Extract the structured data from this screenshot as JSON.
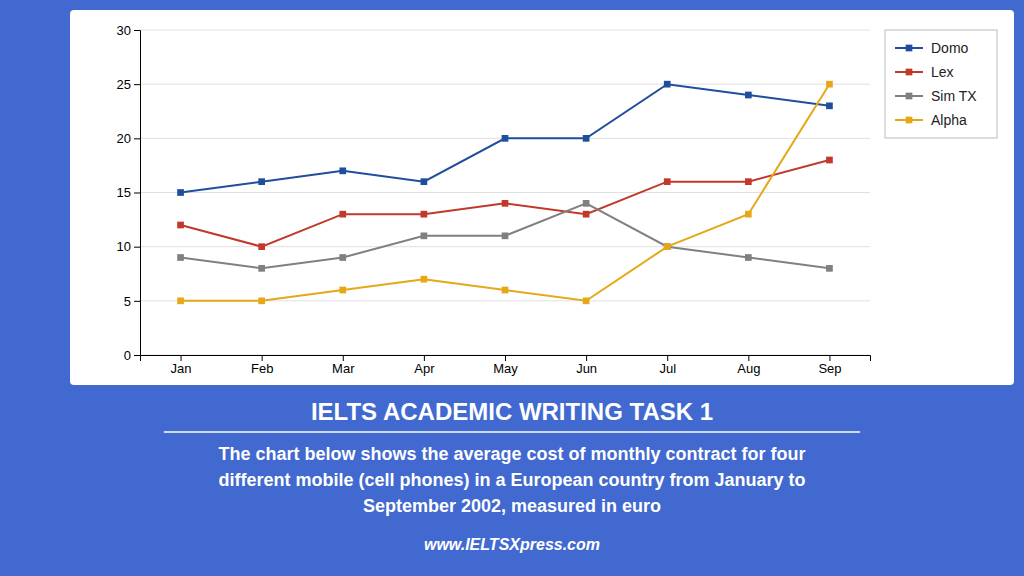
{
  "chart_data": {
    "type": "line",
    "title": "IELTS ACADEMIC WRITING TASK 1",
    "subtitle": [
      "The chart below shows the average cost of monthly contract for four",
      "different mobile (cell phones) in a European country from January to",
      "September 2002, measured in euro"
    ],
    "annotations": [
      "www.IELTSXpress.com"
    ],
    "categories": [
      "Jan",
      "Feb",
      "Mar",
      "Apr",
      "May",
      "Jun",
      "Jul",
      "Aug",
      "Sep"
    ],
    "series": [
      {
        "name": "Domo",
        "color": "#1f4e9c",
        "marker": "square",
        "values": [
          15,
          16,
          17,
          16,
          20,
          20,
          25,
          24,
          23
        ]
      },
      {
        "name": "Lex",
        "color": "#c0392b",
        "marker": "square",
        "values": [
          12,
          10,
          13,
          13,
          14,
          13,
          16,
          16,
          18
        ]
      },
      {
        "name": "Sim TX",
        "color": "#808080",
        "marker": "square",
        "values": [
          9,
          8,
          9,
          11,
          11,
          14,
          10,
          9,
          8
        ]
      },
      {
        "name": "Alpha",
        "color": "#e6a817",
        "marker": "square",
        "values": [
          5,
          5,
          6,
          7,
          6,
          5,
          10,
          13,
          25
        ]
      }
    ],
    "ylim": [
      0,
      30
    ],
    "yticks": [
      0,
      5,
      10,
      15,
      20,
      25,
      30
    ],
    "grid": true,
    "legend": "right"
  }
}
